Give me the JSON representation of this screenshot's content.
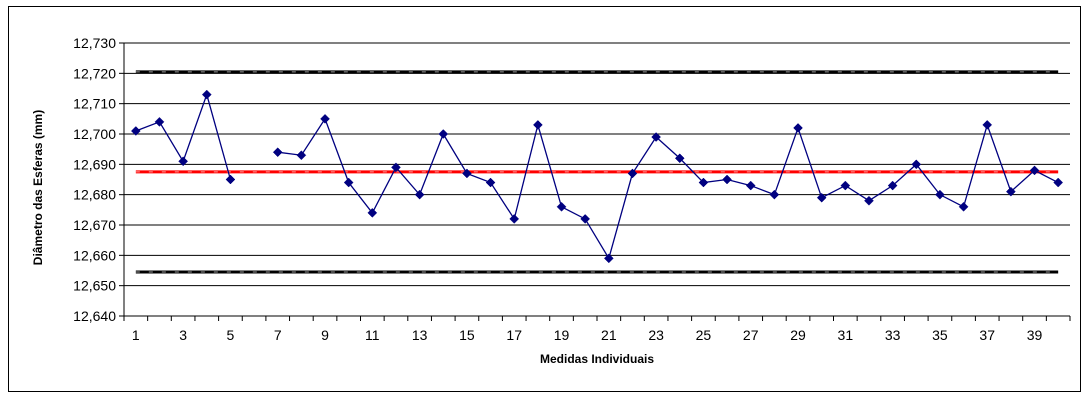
{
  "chart_data": {
    "type": "line",
    "xlabel": "Medidas Individuais",
    "ylabel": "Diâmetro das Esferas (mm)",
    "ylim": [
      12.64,
      12.73
    ],
    "y_ticks": [
      "12,640",
      "12,650",
      "12,660",
      "12,670",
      "12,680",
      "12,690",
      "12,700",
      "12,710",
      "12,720",
      "12,730"
    ],
    "x_tick_labels": [
      "1",
      "3",
      "5",
      "7",
      "9",
      "11",
      "13",
      "15",
      "17",
      "19",
      "21",
      "23",
      "25",
      "27",
      "29",
      "31",
      "33",
      "35",
      "37",
      "39"
    ],
    "grid": true,
    "legend": "none",
    "series": [
      {
        "color": "#000080",
        "x": [
          1,
          2,
          3,
          4,
          5,
          6,
          7,
          8,
          9,
          10,
          11,
          12,
          13,
          14,
          15,
          16,
          17,
          18,
          19,
          20,
          21,
          22,
          23,
          24,
          25,
          26,
          27,
          28,
          29,
          30,
          31,
          32,
          33,
          34,
          35,
          36,
          37,
          38,
          39,
          40
        ],
        "values": [
          12.701,
          12.704,
          12.691,
          12.713,
          12.685,
          null,
          12.694,
          12.693,
          12.705,
          12.684,
          12.674,
          12.689,
          12.68,
          12.7,
          12.687,
          12.684,
          12.672,
          12.703,
          12.676,
          12.672,
          12.659,
          12.687,
          12.699,
          12.692,
          12.684,
          12.685,
          12.683,
          12.68,
          12.702,
          12.679,
          12.683,
          12.678,
          12.683,
          12.69,
          12.68,
          12.676,
          12.703,
          12.681,
          12.688,
          12.684
        ]
      }
    ],
    "reference_lines": [
      {
        "value": 12.7205,
        "color": "#000000"
      },
      {
        "value": 12.6875,
        "color": "#ff0000"
      },
      {
        "value": 12.6545,
        "color": "#000000"
      }
    ]
  }
}
